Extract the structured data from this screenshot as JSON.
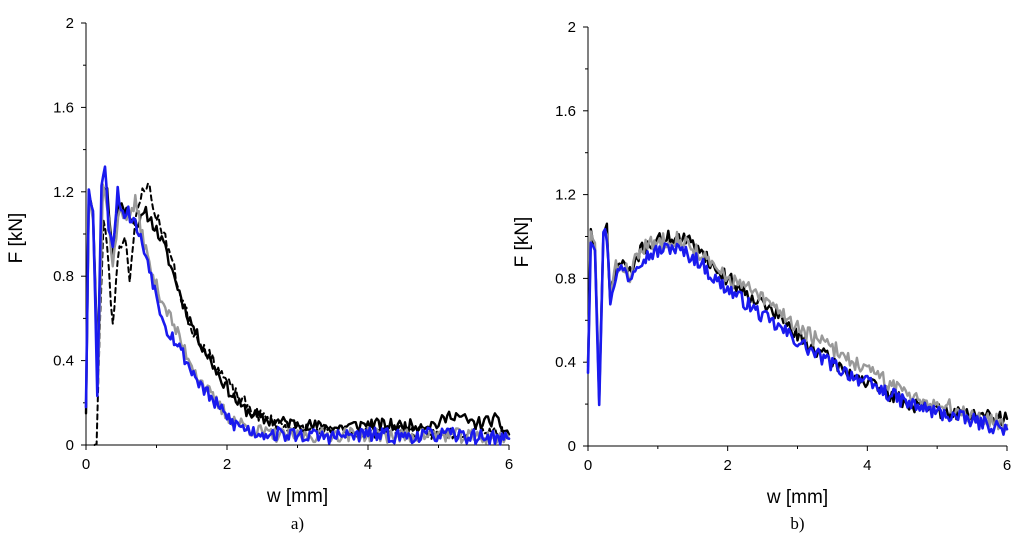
{
  "chart_data": [
    {
      "type": "line",
      "panel_label": "a)",
      "xlabel": "w [mm]",
      "ylabel": "F [kN]",
      "xlim": [
        0,
        6
      ],
      "ylim": [
        0,
        2
      ],
      "xticks": [
        "0",
        "2",
        "4",
        "6"
      ],
      "yticks": [
        "0",
        "0.4",
        "0.8",
        "1.2",
        "1.6",
        "2"
      ],
      "grid": false,
      "legend": "none",
      "series": [
        {
          "color": "#000000",
          "dash": "solid",
          "width": 2.4,
          "noise": 0.03,
          "seed": 11,
          "points": [
            [
              0,
              0.15
            ],
            [
              0.04,
              1.2
            ],
            [
              0.1,
              1.12
            ],
            [
              0.16,
              0.4
            ],
            [
              0.24,
              1.25
            ],
            [
              0.3,
              1.2
            ],
            [
              0.38,
              0.9
            ],
            [
              0.46,
              1.15
            ],
            [
              0.55,
              1.12
            ],
            [
              0.65,
              1.08
            ],
            [
              0.75,
              1.05
            ],
            [
              0.85,
              1.1
            ],
            [
              0.95,
              1.05
            ],
            [
              1.1,
              0.95
            ],
            [
              1.25,
              0.8
            ],
            [
              1.4,
              0.65
            ],
            [
              1.6,
              0.5
            ],
            [
              1.8,
              0.38
            ],
            [
              2.0,
              0.27
            ],
            [
              2.2,
              0.18
            ],
            [
              2.5,
              0.12
            ],
            [
              3.0,
              0.1
            ],
            [
              3.5,
              0.08
            ],
            [
              4.0,
              0.1
            ],
            [
              4.5,
              0.09
            ],
            [
              5.0,
              0.1
            ],
            [
              5.2,
              0.15
            ],
            [
              5.5,
              0.1
            ],
            [
              5.8,
              0.12
            ],
            [
              6.0,
              0.05
            ]
          ]
        },
        {
          "color": "#000000",
          "dash": "5,4",
          "width": 2.0,
          "noise": 0.03,
          "seed": 23,
          "points": [
            [
              0.12,
              0.0
            ],
            [
              0.15,
              0.02
            ],
            [
              0.2,
              0.6
            ],
            [
              0.25,
              1.05
            ],
            [
              0.3,
              0.95
            ],
            [
              0.38,
              0.55
            ],
            [
              0.45,
              0.9
            ],
            [
              0.55,
              1.0
            ],
            [
              0.62,
              0.8
            ],
            [
              0.7,
              1.05
            ],
            [
              0.8,
              1.2
            ],
            [
              0.88,
              1.25
            ],
            [
              0.95,
              1.12
            ],
            [
              1.05,
              1.05
            ],
            [
              1.2,
              0.9
            ],
            [
              1.35,
              0.7
            ],
            [
              1.5,
              0.55
            ],
            [
              1.7,
              0.45
            ],
            [
              1.9,
              0.35
            ],
            [
              2.1,
              0.25
            ],
            [
              2.4,
              0.15
            ],
            [
              2.8,
              0.09
            ],
            [
              3.3,
              0.07
            ],
            [
              4.0,
              0.06
            ],
            [
              4.5,
              0.07
            ],
            [
              5.0,
              0.05
            ],
            [
              5.5,
              0.07
            ],
            [
              6.0,
              0.06
            ]
          ]
        },
        {
          "color": "#999999",
          "dash": "solid",
          "width": 2.4,
          "noise": 0.035,
          "seed": 37,
          "points": [
            [
              0,
              0.2
            ],
            [
              0.04,
              1.2
            ],
            [
              0.1,
              1.1
            ],
            [
              0.17,
              0.3
            ],
            [
              0.24,
              1.22
            ],
            [
              0.3,
              1.15
            ],
            [
              0.38,
              0.85
            ],
            [
              0.48,
              1.12
            ],
            [
              0.6,
              1.08
            ],
            [
              0.7,
              1.15
            ],
            [
              0.8,
              1.0
            ],
            [
              0.9,
              0.85
            ],
            [
              1.0,
              0.75
            ],
            [
              1.2,
              0.6
            ],
            [
              1.4,
              0.45
            ],
            [
              1.6,
              0.32
            ],
            [
              1.8,
              0.22
            ],
            [
              2.0,
              0.14
            ],
            [
              2.3,
              0.08
            ],
            [
              2.6,
              0.05
            ],
            [
              3.0,
              0.04
            ],
            [
              3.5,
              0.05
            ],
            [
              4.0,
              0.05
            ],
            [
              4.5,
              0.04
            ],
            [
              5.0,
              0.05
            ],
            [
              5.5,
              0.04
            ],
            [
              6.0,
              0.03
            ]
          ]
        },
        {
          "color": "#1a1aee",
          "dash": "solid",
          "width": 2.6,
          "noise": 0.035,
          "seed": 53,
          "points": [
            [
              0,
              0.18
            ],
            [
              0.04,
              1.24
            ],
            [
              0.1,
              1.1
            ],
            [
              0.16,
              0.25
            ],
            [
              0.22,
              1.25
            ],
            [
              0.27,
              1.31
            ],
            [
              0.32,
              1.05
            ],
            [
              0.38,
              0.95
            ],
            [
              0.45,
              1.2
            ],
            [
              0.52,
              1.1
            ],
            [
              0.6,
              1.1
            ],
            [
              0.7,
              1.05
            ],
            [
              0.8,
              0.95
            ],
            [
              0.9,
              0.85
            ],
            [
              1.0,
              0.7
            ],
            [
              1.15,
              0.55
            ],
            [
              1.3,
              0.48
            ],
            [
              1.5,
              0.35
            ],
            [
              1.7,
              0.25
            ],
            [
              1.9,
              0.17
            ],
            [
              2.1,
              0.1
            ],
            [
              2.4,
              0.06
            ],
            [
              2.8,
              0.05
            ],
            [
              3.5,
              0.04
            ],
            [
              4.0,
              0.05
            ],
            [
              4.5,
              0.04
            ],
            [
              5.0,
              0.05
            ],
            [
              5.5,
              0.04
            ],
            [
              6.0,
              0.03
            ]
          ]
        }
      ]
    },
    {
      "type": "line",
      "panel_label": "b)",
      "xlabel": "w [mm]",
      "ylabel": "F [kN]",
      "xlim": [
        0,
        6
      ],
      "ylim": [
        0,
        2
      ],
      "xticks": [
        "0",
        "2",
        "4",
        "6"
      ],
      "yticks": [
        "0",
        "0.4",
        "0.8",
        "1.2",
        "1.6",
        "2"
      ],
      "grid": false,
      "legend": "none",
      "series": [
        {
          "color": "#000000",
          "dash": "solid",
          "width": 2.4,
          "noise": 0.035,
          "seed": 71,
          "points": [
            [
              0,
              0.4
            ],
            [
              0.04,
              1.02
            ],
            [
              0.1,
              0.95
            ],
            [
              0.16,
              0.2
            ],
            [
              0.22,
              1.0
            ],
            [
              0.27,
              1.05
            ],
            [
              0.32,
              0.7
            ],
            [
              0.4,
              0.85
            ],
            [
              0.5,
              0.88
            ],
            [
              0.6,
              0.82
            ],
            [
              0.7,
              0.9
            ],
            [
              0.8,
              0.95
            ],
            [
              1.0,
              0.98
            ],
            [
              1.2,
              1.0
            ],
            [
              1.4,
              0.98
            ],
            [
              1.6,
              0.95
            ],
            [
              1.8,
              0.85
            ],
            [
              2.0,
              0.8
            ],
            [
              2.2,
              0.75
            ],
            [
              2.5,
              0.68
            ],
            [
              2.8,
              0.6
            ],
            [
              3.0,
              0.52
            ],
            [
              3.3,
              0.45
            ],
            [
              3.6,
              0.38
            ],
            [
              4.0,
              0.3
            ],
            [
              4.3,
              0.25
            ],
            [
              4.6,
              0.2
            ],
            [
              5.0,
              0.17
            ],
            [
              5.5,
              0.15
            ],
            [
              6.0,
              0.13
            ]
          ]
        },
        {
          "color": "#999999",
          "dash": "solid",
          "width": 2.4,
          "noise": 0.04,
          "seed": 83,
          "points": [
            [
              0,
              0.38
            ],
            [
              0.04,
              1.0
            ],
            [
              0.1,
              0.95
            ],
            [
              0.16,
              0.25
            ],
            [
              0.22,
              1.0
            ],
            [
              0.27,
              1.02
            ],
            [
              0.32,
              0.7
            ],
            [
              0.4,
              0.85
            ],
            [
              0.5,
              0.86
            ],
            [
              0.6,
              0.82
            ],
            [
              0.7,
              0.9
            ],
            [
              0.8,
              0.95
            ],
            [
              1.0,
              0.97
            ],
            [
              1.2,
              1.0
            ],
            [
              1.4,
              0.97
            ],
            [
              1.6,
              0.92
            ],
            [
              1.8,
              0.85
            ],
            [
              2.0,
              0.8
            ],
            [
              2.2,
              0.77
            ],
            [
              2.5,
              0.7
            ],
            [
              2.8,
              0.63
            ],
            [
              3.0,
              0.57
            ],
            [
              3.3,
              0.5
            ],
            [
              3.6,
              0.45
            ],
            [
              4.0,
              0.36
            ],
            [
              4.3,
              0.3
            ],
            [
              4.6,
              0.25
            ],
            [
              5.0,
              0.2
            ],
            [
              5.5,
              0.15
            ],
            [
              6.0,
              0.1
            ]
          ]
        },
        {
          "color": "#1a1aee",
          "dash": "solid",
          "width": 2.6,
          "noise": 0.035,
          "seed": 97,
          "points": [
            [
              0,
              0.35
            ],
            [
              0.04,
              1.0
            ],
            [
              0.1,
              0.95
            ],
            [
              0.16,
              0.22
            ],
            [
              0.22,
              1.02
            ],
            [
              0.27,
              1.0
            ],
            [
              0.32,
              0.7
            ],
            [
              0.4,
              0.82
            ],
            [
              0.5,
              0.85
            ],
            [
              0.6,
              0.8
            ],
            [
              0.7,
              0.88
            ],
            [
              0.8,
              0.9
            ],
            [
              1.0,
              0.93
            ],
            [
              1.2,
              0.95
            ],
            [
              1.4,
              0.92
            ],
            [
              1.6,
              0.88
            ],
            [
              1.8,
              0.8
            ],
            [
              2.0,
              0.75
            ],
            [
              2.2,
              0.7
            ],
            [
              2.5,
              0.62
            ],
            [
              2.8,
              0.55
            ],
            [
              3.0,
              0.5
            ],
            [
              3.3,
              0.43
            ],
            [
              3.6,
              0.37
            ],
            [
              4.0,
              0.3
            ],
            [
              4.3,
              0.25
            ],
            [
              4.6,
              0.2
            ],
            [
              5.0,
              0.16
            ],
            [
              5.5,
              0.12
            ],
            [
              6.0,
              0.08
            ]
          ]
        }
      ]
    }
  ]
}
